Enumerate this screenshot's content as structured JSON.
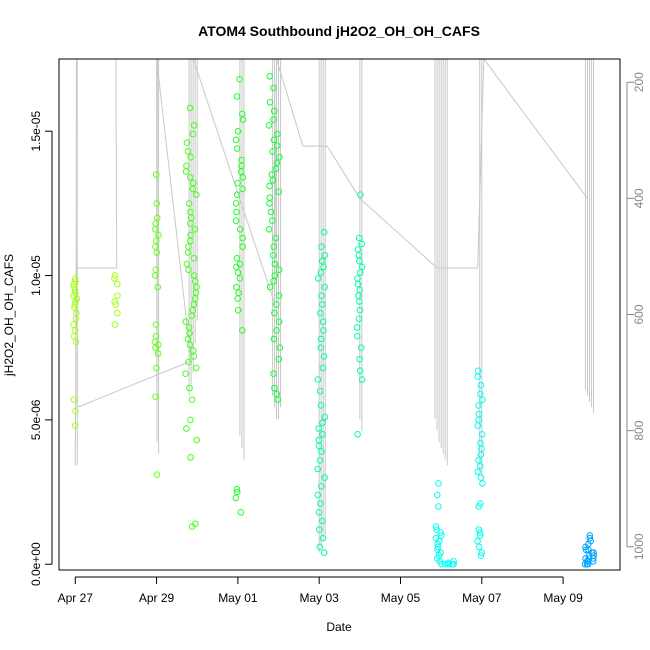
{
  "chart_data": {
    "type": "scatter",
    "title": "ATOM4 Southbound jH2O2_OH_OH_CAFS",
    "xlabel": "Date",
    "ylabel": "jH2O2_OH_OH_CAFS",
    "x_tick_labels": [
      "Apr 27",
      "Apr 29",
      "May 01",
      "May 03",
      "May 05",
      "May 07",
      "May 09"
    ],
    "x_tick_days": [
      0,
      2,
      4,
      6,
      8,
      10,
      12
    ],
    "y_tick_labels": [
      "0.0e+00",
      "5.0e-06",
      "1.0e-05",
      "1.5e-05"
    ],
    "y_tick_values": [
      0,
      5e-06,
      1e-05,
      1.5e-05
    ],
    "ylim": [
      -2e-07,
      1.75e-05
    ],
    "right_axis_tick_labels": [
      "200",
      "400",
      "600",
      "800",
      "1000"
    ],
    "right_axis_tick_values": [
      200,
      400,
      600,
      800,
      1000
    ],
    "right_axis_ylim": [
      1040,
      160
    ],
    "grid": false,
    "point_color_scale": [
      "#b2ff00",
      "#00ff33",
      "#00ffff",
      "#0099ff"
    ],
    "pressure_line_color": "#c8c8c8",
    "clusters": [
      {
        "day": 0.0,
        "spread": 0.05,
        "color": "#a6ff1a",
        "values": [
          9.9e-06,
          9.8e-06,
          9.7e-06,
          9.6e-06,
          9.5e-06,
          9.4e-06,
          9.3e-06,
          9.2e-06,
          9.1e-06,
          9e-06,
          8.9e-06,
          8.7e-06,
          8.5e-06,
          8.3e-06,
          8.1e-06,
          7.9e-06,
          7.7e-06,
          5.7e-06,
          5.3e-06,
          4.8e-06
        ]
      },
      {
        "day": 1.0,
        "spread": 0.04,
        "color": "#a6ff1a",
        "values": [
          1e-05,
          9.9e-06,
          9.7e-06,
          9.3e-06,
          9.1e-06,
          9e-06,
          8.7e-06,
          8.3e-06
        ]
      },
      {
        "day": 2.0,
        "spread": 0.05,
        "color": "#66ff1a",
        "values": [
          1.35e-05,
          1.25e-05,
          1.2e-05,
          1.18e-05,
          1.16e-05,
          1.14e-05,
          1.12e-05,
          1.1e-05,
          1.08e-05,
          1.02e-05,
          1e-05,
          9.6e-06,
          8.3e-06,
          7.9e-06,
          7.7e-06,
          7.6e-06,
          7.5e-06,
          7.3e-06,
          6.8e-06,
          5.8e-06,
          3.1e-06
        ]
      },
      {
        "day": 2.85,
        "spread": 0.14,
        "color": "#44ff1a",
        "values": [
          1.58e-05,
          1.52e-05,
          1.49e-05,
          1.46e-05,
          1.43e-05,
          1.41e-05,
          1.38e-05,
          1.36e-05,
          1.34e-05,
          1.32e-05,
          1.3e-05,
          1.28e-05,
          1.25e-05,
          1.22e-05,
          1.2e-05,
          1.18e-05,
          1.16e-05,
          1.14e-05,
          1.12e-05,
          1.1e-05,
          1.08e-05,
          1.06e-05,
          1.04e-05,
          1.02e-05,
          1e-05,
          9.8e-06,
          9.6e-06,
          9.4e-06,
          9.2e-06,
          9e-06,
          8.8e-06,
          8.6e-06,
          8.4e-06,
          8.2e-06,
          8e-06,
          7.8e-06,
          7.6e-06,
          7.4e-06,
          7.2e-06,
          7e-06,
          6.8e-06,
          6.6e-06,
          6.1e-06,
          5.7e-06,
          5e-06,
          4.7e-06,
          4.3e-06,
          3.7e-06,
          1.4e-06,
          1.3e-06
        ]
      },
      {
        "day": 4.05,
        "spread": 0.1,
        "color": "#22ff22",
        "values": [
          1.68e-05,
          1.62e-05,
          1.56e-05,
          1.54e-05,
          1.5e-05,
          1.47e-05,
          1.44e-05,
          1.4e-05,
          1.38e-05,
          1.36e-05,
          1.34e-05,
          1.32e-05,
          1.3e-05,
          1.28e-05,
          1.25e-05,
          1.22e-05,
          1.19e-05,
          1.16e-05,
          1.13e-05,
          1.1e-05,
          1.06e-05,
          1.04e-05,
          1.03e-05,
          1.01e-05,
          9.9e-06,
          9.6e-06,
          9.4e-06,
          9.2e-06,
          8.8e-06,
          8.1e-06,
          2.6e-06,
          2.5e-06,
          2.3e-06,
          1.8e-06
        ]
      },
      {
        "day": 4.9,
        "spread": 0.14,
        "color": "#11ff33",
        "values": [
          1.69e-05,
          1.65e-05,
          1.6e-05,
          1.57e-05,
          1.54e-05,
          1.52e-05,
          1.49e-05,
          1.47e-05,
          1.45e-05,
          1.43e-05,
          1.41e-05,
          1.39e-05,
          1.37e-05,
          1.35e-05,
          1.33e-05,
          1.31e-05,
          1.29e-05,
          1.27e-05,
          1.25e-05,
          1.22e-05,
          1.19e-05,
          1.16e-05,
          1.13e-05,
          1.1e-05,
          1.07e-05,
          1.04e-05,
          1.02e-05,
          1e-05,
          9.8e-06,
          9.6e-06,
          9.3e-06,
          9e-06,
          8.7e-06,
          8.4e-06,
          8.1e-06,
          7.8e-06,
          7.5e-06,
          7.1e-06,
          6.6e-06,
          6.1e-06,
          5.9e-06,
          5.7e-06
        ]
      },
      {
        "day": 6.05,
        "spread": 0.09,
        "color": "#00ff99",
        "values": [
          1.15e-05,
          1.1e-05,
          1.07e-05,
          1.05e-05,
          1.03e-05,
          1.01e-05,
          9.9e-06,
          9.6e-06,
          9.3e-06,
          9e-06,
          8.7e-06,
          8.4e-06,
          8.1e-06,
          7.8e-06,
          7.5e-06,
          7.2e-06,
          6.8e-06,
          6.4e-06,
          6e-06,
          5.5e-06,
          5.1e-06,
          4.9e-06,
          4.7e-06,
          4.5e-06,
          4.3e-06,
          4.1e-06,
          3.9e-06,
          3.6e-06,
          3.3e-06,
          3e-06,
          2.7e-06,
          2.4e-06,
          2.1e-06,
          1.8e-06,
          1.5e-06,
          1.2e-06,
          9e-07,
          6e-07,
          4e-07
        ]
      },
      {
        "day": 7.0,
        "spread": 0.07,
        "color": "#00ffa6",
        "values": [
          1.28e-05,
          1.13e-05,
          1.11e-05,
          1.09e-05,
          1.07e-05,
          1.05e-05,
          1.03e-05,
          1.01e-05,
          9.9e-06,
          9.7e-06,
          9.5e-06,
          9.3e-06,
          9.1e-06,
          8.8e-06,
          8.5e-06,
          8.2e-06,
          7.9e-06,
          7.5e-06,
          7.1e-06,
          6.7e-06,
          6.4e-06,
          4.5e-06
        ]
      },
      {
        "day": 8.95,
        "spread": 0.08,
        "color": "#00ffee",
        "values": [
          2.8e-06,
          2.4e-06,
          2e-06,
          1.3e-06,
          1.2e-06,
          1.1e-06,
          1e-06,
          9e-07,
          8e-07,
          7e-07,
          6e-07,
          5e-07,
          4e-07,
          3e-07,
          2e-07,
          1e-07,
          0.0
        ]
      },
      {
        "day": 9.2,
        "spread": 0.12,
        "color": "#00ffff",
        "values": [
          1e-07,
          5e-08,
          0.0,
          0.0,
          0.0,
          0.0
        ]
      },
      {
        "day": 9.95,
        "spread": 0.07,
        "color": "#00ffee",
        "values": [
          6.7e-06,
          6.5e-06,
          6.2e-06,
          5.9e-06,
          5.7e-06,
          5.5e-06,
          5.2e-06,
          5e-06,
          4.8e-06,
          4.5e-06,
          4.2e-06,
          4e-06,
          3.8e-06,
          3.6e-06,
          3.4e-06,
          3.2e-06,
          3e-06,
          2.8e-06,
          2.1e-06,
          2e-06,
          1.2e-06,
          1.1e-06,
          1e-06,
          8e-07,
          6e-07,
          4e-07,
          3e-07
        ]
      },
      {
        "day": 12.65,
        "spread": 0.12,
        "color": "#00a6ff",
        "values": [
          1e-06,
          9e-07,
          8e-07,
          7e-07,
          6e-07,
          5e-07,
          5e-07,
          4e-07,
          4e-07,
          3e-07,
          3e-07,
          2e-07,
          2e-07,
          2e-07,
          1e-07,
          1e-07,
          1e-07,
          0.0,
          0.0,
          0.0
        ]
      }
    ],
    "pressure_profile": [
      {
        "day": 0.0,
        "pressure": 860
      },
      {
        "day": 0.02,
        "pressure": 520
      },
      {
        "day": 0.03,
        "pressure": 160
      },
      {
        "day": 1.0,
        "pressure": 160
      },
      {
        "day": 1.02,
        "pressure": 520
      },
      {
        "day": 0.04,
        "pressure": 520
      },
      {
        "day": 0.05,
        "pressure": 760
      },
      {
        "day": 2.85,
        "pressure": 680
      },
      {
        "day": 2.0,
        "pressure": 160
      },
      {
        "day": 2.01,
        "pressure": 820
      },
      {
        "day": 2.02,
        "pressure": 160
      },
      {
        "day": 2.9,
        "pressure": 160
      },
      {
        "day": 4.9,
        "pressure": 580
      },
      {
        "day": 4.95,
        "pressure": 160
      },
      {
        "day": 5.6,
        "pressure": 310
      },
      {
        "day": 6.2,
        "pressure": 310
      },
      {
        "day": 7.0,
        "pressure": 400
      },
      {
        "day": 8.9,
        "pressure": 520
      },
      {
        "day": 9.9,
        "pressure": 520
      },
      {
        "day": 10.05,
        "pressure": 160
      },
      {
        "day": 12.6,
        "pressure": 400
      }
    ],
    "pressure_spikes": [
      {
        "day": 0.05,
        "bottom": 860
      },
      {
        "day": 2.05,
        "bottom": 840
      },
      {
        "day": 2.8,
        "bottom": 740
      },
      {
        "day": 2.85,
        "bottom": 720
      },
      {
        "day": 2.9,
        "bottom": 700
      },
      {
        "day": 2.95,
        "bottom": 650
      },
      {
        "day": 3.0,
        "bottom": 610
      },
      {
        "day": 4.05,
        "bottom": 810
      },
      {
        "day": 4.1,
        "bottom": 830
      },
      {
        "day": 4.15,
        "bottom": 850
      },
      {
        "day": 4.85,
        "bottom": 740
      },
      {
        "day": 4.9,
        "bottom": 760
      },
      {
        "day": 4.95,
        "bottom": 780
      },
      {
        "day": 5.0,
        "bottom": 780
      },
      {
        "day": 5.05,
        "bottom": 760
      },
      {
        "day": 6.0,
        "bottom": 1010
      },
      {
        "day": 6.05,
        "bottom": 1000
      },
      {
        "day": 6.1,
        "bottom": 990
      },
      {
        "day": 6.15,
        "bottom": 980
      },
      {
        "day": 7.0,
        "bottom": 780
      },
      {
        "day": 7.05,
        "bottom": 800
      },
      {
        "day": 8.85,
        "bottom": 780
      },
      {
        "day": 8.9,
        "bottom": 800
      },
      {
        "day": 8.95,
        "bottom": 820
      },
      {
        "day": 9.0,
        "bottom": 830
      },
      {
        "day": 9.05,
        "bottom": 840
      },
      {
        "day": 9.1,
        "bottom": 850
      },
      {
        "day": 9.15,
        "bottom": 860
      },
      {
        "day": 9.95,
        "bottom": 870
      },
      {
        "day": 10.0,
        "bottom": 880
      },
      {
        "day": 12.55,
        "bottom": 730
      },
      {
        "day": 12.6,
        "bottom": 740
      },
      {
        "day": 12.65,
        "bottom": 750
      },
      {
        "day": 12.7,
        "bottom": 760
      },
      {
        "day": 12.75,
        "bottom": 770
      }
    ]
  }
}
